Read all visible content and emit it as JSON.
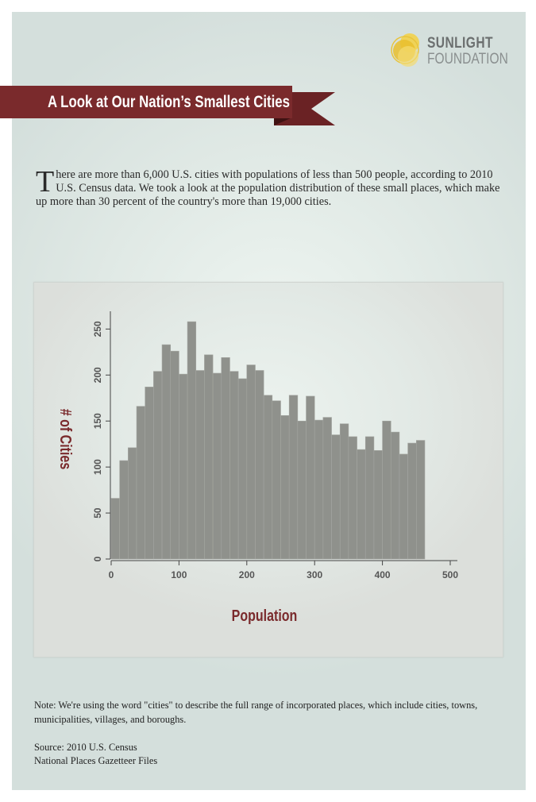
{
  "logo": {
    "line1": "SUNLIGHT",
    "line2": "FOUNDATION"
  },
  "banner": {
    "title": "A Look at Our Nation’s Smallest Cities",
    "color": "#7a2a2c"
  },
  "intro": {
    "drop_cap": "T",
    "text": "here are more than 6,000 U.S. cities with populations of less than 500 people, according to 2010 U.S. Census data. We took a look at the population distribution of these small places, which make up more than 30 percent of the country's more than 19,000 cities."
  },
  "chart_data": {
    "type": "bar",
    "title": "",
    "xlabel": "Population",
    "ylabel": "# of Cities",
    "bin_width": 12.5,
    "x_start": 0,
    "values": [
      66,
      107,
      121,
      166,
      187,
      204,
      233,
      226,
      201,
      258,
      205,
      222,
      202,
      219,
      204,
      196,
      211,
      205,
      178,
      172,
      156,
      178,
      150,
      177,
      151,
      154,
      135,
      147,
      133,
      119,
      133,
      118,
      150,
      138,
      114,
      126,
      129
    ],
    "xlim": [
      0,
      500
    ],
    "ylim": [
      0,
      265
    ],
    "x_ticks": [
      0,
      100,
      200,
      300,
      400,
      500
    ],
    "y_ticks": [
      0,
      50,
      100,
      150,
      200,
      250
    ],
    "bar_color": "#8f918c",
    "label_color": "#7a2a2c",
    "grid": false
  },
  "note": "Note: We're using the word \"cities\" to describe the full range of incorporated places, which include cities, towns, municipalities, villages, and boroughs.",
  "source": {
    "line1": "Source: 2010 U.S. Census",
    "line2": "National Places Gazetteer Files"
  }
}
